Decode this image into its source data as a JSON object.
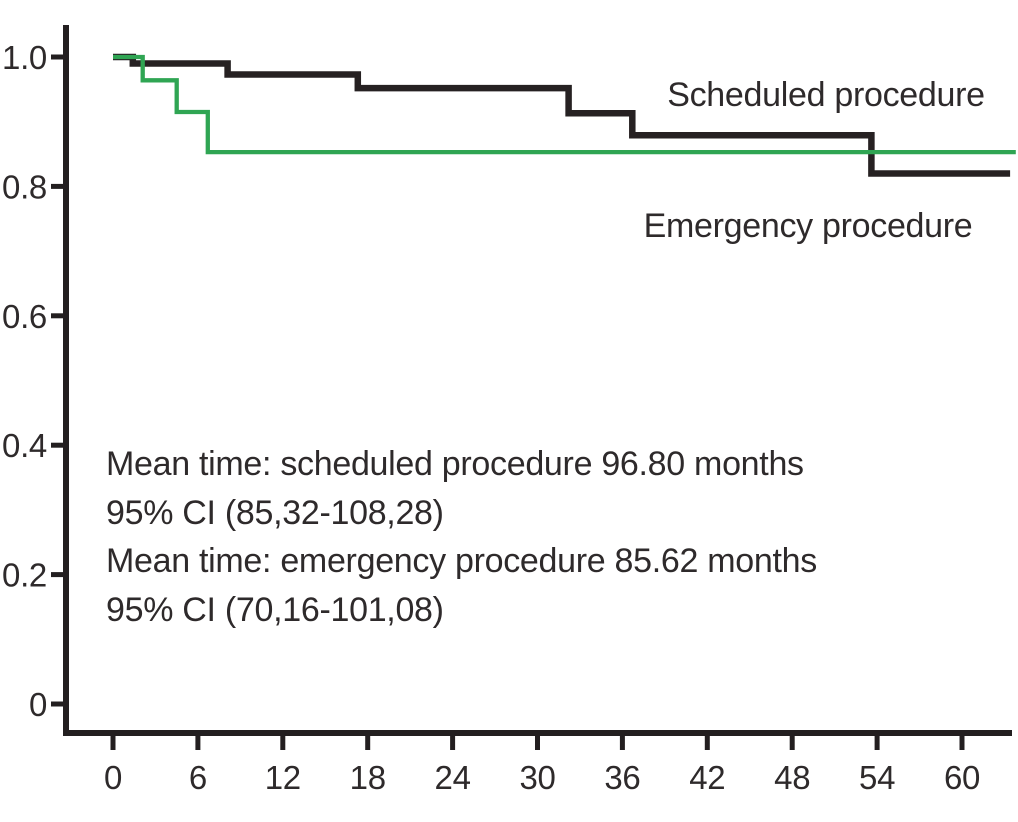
{
  "figure": {
    "background": "#ffffff",
    "text_color": "#2e2a2b",
    "axis_color": "#231f20"
  },
  "chart_data": {
    "type": "line",
    "subtype": "kaplan-meier-step-survival",
    "title": "",
    "xlabel": "",
    "ylabel": "",
    "x_ticks": [
      0,
      6,
      12,
      18,
      24,
      30,
      36,
      42,
      48,
      54,
      60
    ],
    "y_ticks": [
      {
        "label": "1.0",
        "value": 1.0
      },
      {
        "label": "0.8",
        "value": 0.8
      },
      {
        "label": "0.6",
        "value": 0.6
      },
      {
        "label": "0.4",
        "value": 0.4
      },
      {
        "label": "0.2",
        "value": 0.2
      },
      {
        "label": "0",
        "value": 0.0
      }
    ],
    "xlim": [
      0,
      64
    ],
    "ylim": [
      0,
      1.05
    ],
    "grid": false,
    "legend_position": "inline-labels",
    "series": [
      {
        "name": "Scheduled procedure",
        "color": "#262122",
        "stroke_width": 6.5,
        "steps": [
          {
            "t": 0,
            "s": 1.0
          },
          {
            "t": 1.4,
            "s": 0.99
          },
          {
            "t": 8.1,
            "s": 0.973
          },
          {
            "t": 17.3,
            "s": 0.952
          },
          {
            "t": 32.2,
            "s": 0.913
          },
          {
            "t": 36.7,
            "s": 0.879
          },
          {
            "t": 53.6,
            "s": 0.82
          }
        ],
        "t_end": 63.4
      },
      {
        "name": "Emergency procedure",
        "color": "#2fa553",
        "stroke_width": 4.3,
        "steps": [
          {
            "t": 0,
            "s": 1.0
          },
          {
            "t": 2.1,
            "s": 0.964
          },
          {
            "t": 4.5,
            "s": 0.915
          },
          {
            "t": 6.7,
            "s": 0.853
          }
        ],
        "t_end": 63.8
      }
    ],
    "annotation": {
      "lines": [
        "Mean time: scheduled procedure 96.80 months",
        "95% CI (85,32-108,28)",
        "Mean time: emergency procedure 85.62 months",
        "95% CI (70,16-101,08)"
      ]
    }
  }
}
